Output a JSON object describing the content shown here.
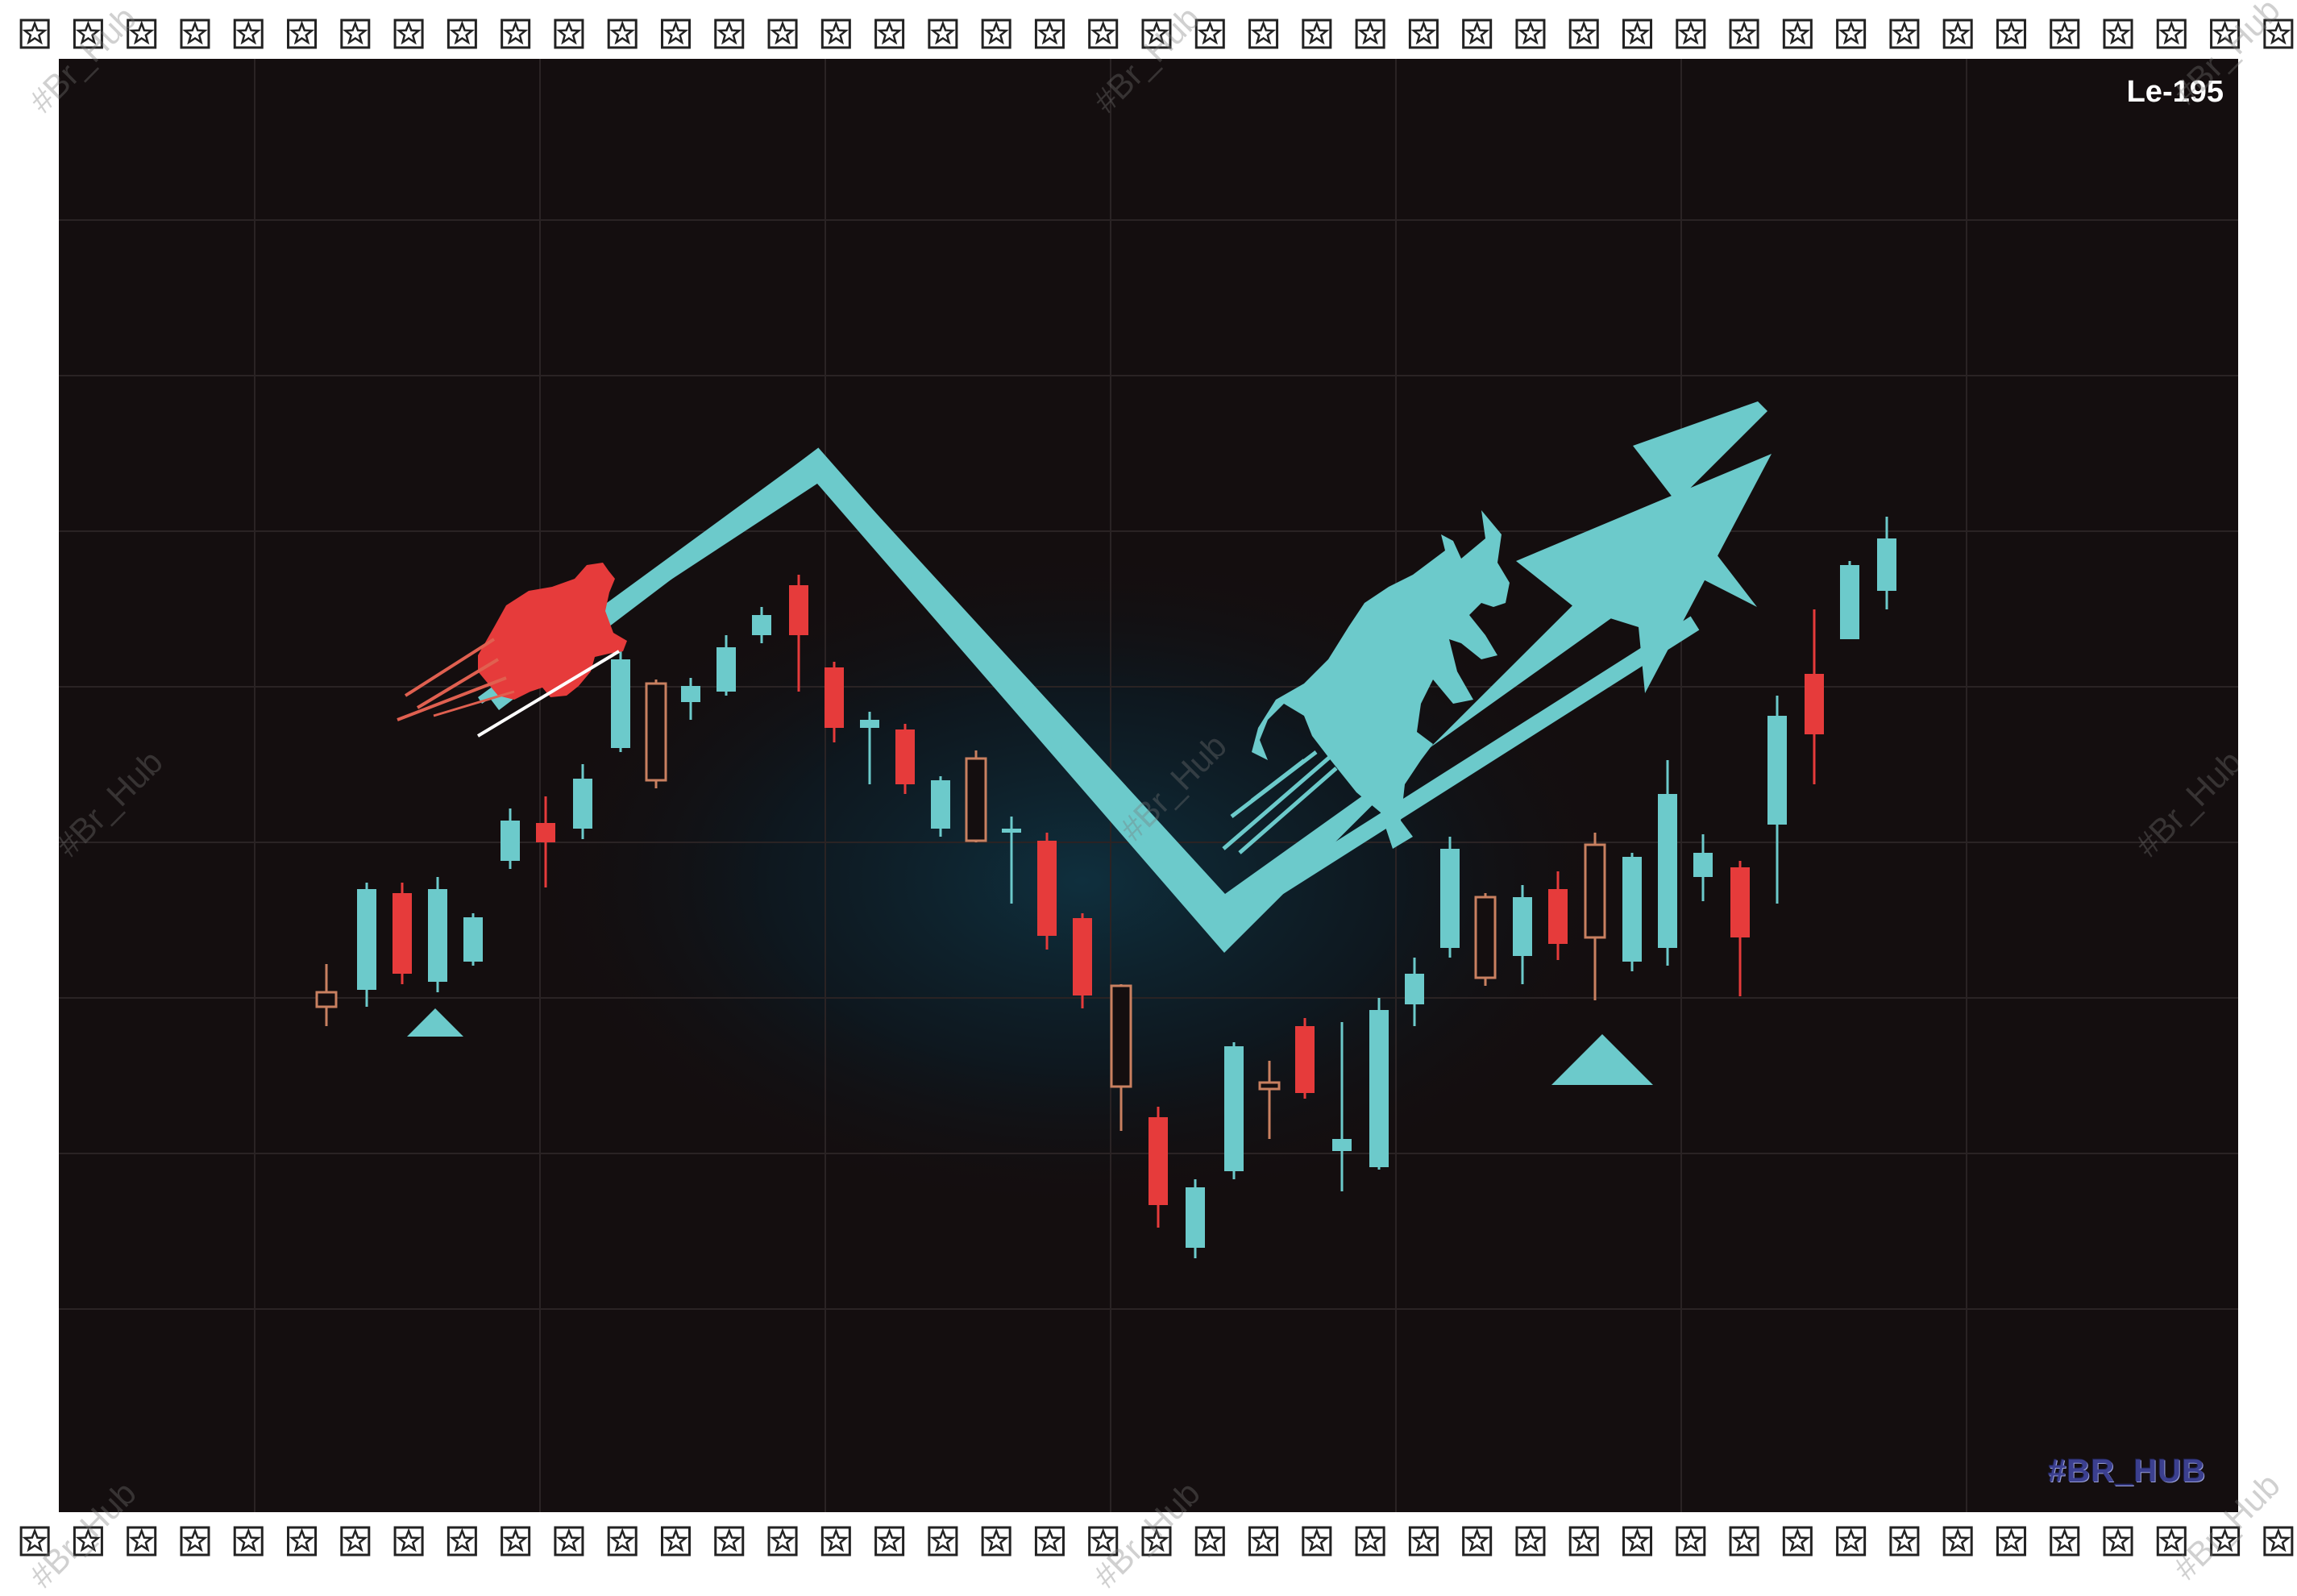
{
  "image_code": "Le-195",
  "brand_mark": "#BR_HUB",
  "watermark": "#Br_Hub",
  "colors": {
    "background": "#140e0f",
    "bull": "#6ccacb",
    "bear": "#e63b3b",
    "doji": "#c98060",
    "frame": "#ffffff"
  },
  "icons": [
    "star-border-icon",
    "bear-icon",
    "bull-icon",
    "trend-arrow-icon",
    "up-triangle-icon"
  ]
}
